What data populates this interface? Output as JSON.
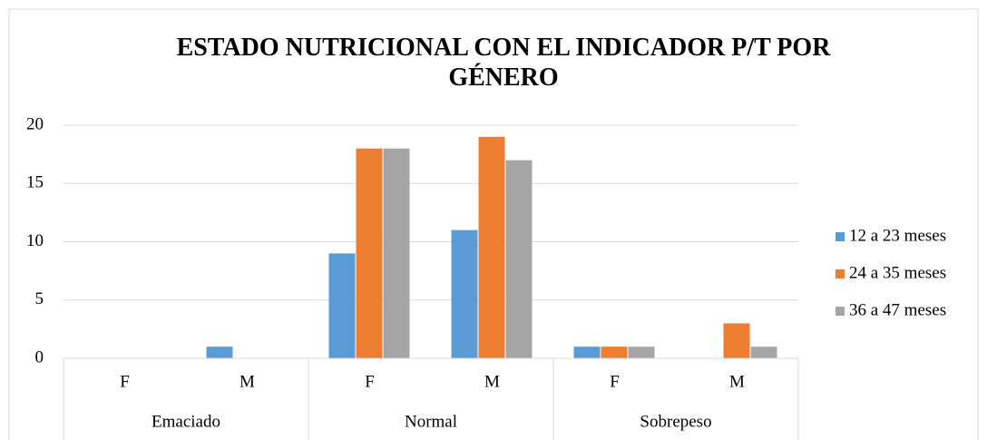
{
  "chart_data": {
    "type": "bar",
    "title": "ESTADO NUTRICIONAL CON EL INDICADOR P/T POR GÉNERO",
    "categories": [
      "F",
      "M",
      "F",
      "M",
      "F",
      "M"
    ],
    "groups": [
      "Emaciado",
      "Normal",
      "Sobrepeso"
    ],
    "series": [
      {
        "name": "12 a 23 meses",
        "color": "#5b9bd5",
        "values": [
          0,
          1,
          9,
          11,
          1,
          0
        ]
      },
      {
        "name": "24 a 35 meses",
        "color": "#ed7d31",
        "values": [
          0,
          0,
          18,
          19,
          1,
          3
        ]
      },
      {
        "name": "36 a 47 meses",
        "color": "#a5a5a5",
        "values": [
          0,
          0,
          18,
          17,
          1,
          1
        ]
      }
    ],
    "ylim": [
      0,
      20
    ],
    "yticks": [
      0,
      5,
      10,
      15,
      20
    ],
    "grid": true,
    "legend": "right"
  }
}
